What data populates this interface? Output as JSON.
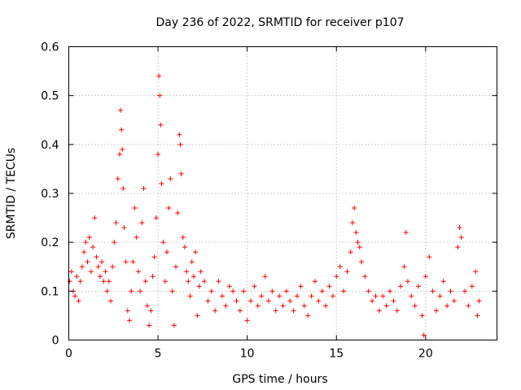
{
  "chart_data": {
    "type": "scatter",
    "title": "Day 236 of 2022, SRMTID for receiver p107",
    "xlabel": "GPS time / hours",
    "ylabel": "SRMTID / TECUs",
    "xlim": [
      0,
      24
    ],
    "ylim": [
      0,
      0.6
    ],
    "x_ticks": [
      0,
      5,
      10,
      15,
      20
    ],
    "x_tick_labels": [
      "0",
      "5",
      "10",
      "15",
      "20"
    ],
    "y_ticks": [
      0,
      0.1,
      0.2,
      0.3,
      0.4,
      0.5,
      0.6
    ],
    "y_tick_labels": [
      "0",
      "0.1",
      "0.2",
      "0.3",
      "0.4",
      "0.5",
      "0.6"
    ],
    "grid": true,
    "marker": "+",
    "marker_color": "#ff0000",
    "series": [
      {
        "name": "p107",
        "points": [
          [
            0.05,
            0.12
          ],
          [
            0.15,
            0.14
          ],
          [
            0.25,
            0.1
          ],
          [
            0.35,
            0.09
          ],
          [
            0.45,
            0.13
          ],
          [
            0.55,
            0.08
          ],
          [
            0.65,
            0.12
          ],
          [
            0.75,
            0.15
          ],
          [
            0.85,
            0.18
          ],
          [
            0.95,
            0.2
          ],
          [
            1.05,
            0.16
          ],
          [
            1.15,
            0.21
          ],
          [
            1.25,
            0.14
          ],
          [
            1.35,
            0.19
          ],
          [
            1.45,
            0.25
          ],
          [
            1.55,
            0.17
          ],
          [
            1.65,
            0.15
          ],
          [
            1.75,
            0.13
          ],
          [
            1.85,
            0.16
          ],
          [
            1.95,
            0.12
          ],
          [
            2.05,
            0.14
          ],
          [
            2.15,
            0.1
          ],
          [
            2.25,
            0.12
          ],
          [
            2.35,
            0.08
          ],
          [
            2.45,
            0.15
          ],
          [
            2.55,
            0.2
          ],
          [
            2.65,
            0.24
          ],
          [
            2.75,
            0.33
          ],
          [
            2.85,
            0.38
          ],
          [
            2.9,
            0.47
          ],
          [
            2.95,
            0.43
          ],
          [
            3.0,
            0.39
          ],
          [
            3.05,
            0.31
          ],
          [
            3.1,
            0.23
          ],
          [
            3.2,
            0.16
          ],
          [
            3.3,
            0.06
          ],
          [
            3.4,
            0.04
          ],
          [
            3.5,
            0.1
          ],
          [
            3.6,
            0.16
          ],
          [
            3.7,
            0.27
          ],
          [
            3.8,
            0.21
          ],
          [
            3.9,
            0.14
          ],
          [
            4.0,
            0.1
          ],
          [
            4.1,
            0.24
          ],
          [
            4.2,
            0.31
          ],
          [
            4.3,
            0.12
          ],
          [
            4.4,
            0.07
          ],
          [
            4.5,
            0.03
          ],
          [
            4.6,
            0.06
          ],
          [
            4.7,
            0.13
          ],
          [
            4.8,
            0.17
          ],
          [
            4.9,
            0.25
          ],
          [
            5.0,
            0.38
          ],
          [
            5.05,
            0.54
          ],
          [
            5.1,
            0.5
          ],
          [
            5.15,
            0.44
          ],
          [
            5.2,
            0.32
          ],
          [
            5.3,
            0.2
          ],
          [
            5.4,
            0.12
          ],
          [
            5.5,
            0.18
          ],
          [
            5.6,
            0.27
          ],
          [
            5.7,
            0.33
          ],
          [
            5.8,
            0.1
          ],
          [
            5.9,
            0.03
          ],
          [
            6.0,
            0.15
          ],
          [
            6.1,
            0.26
          ],
          [
            6.2,
            0.42
          ],
          [
            6.25,
            0.4
          ],
          [
            6.3,
            0.34
          ],
          [
            6.4,
            0.21
          ],
          [
            6.5,
            0.19
          ],
          [
            6.6,
            0.14
          ],
          [
            6.7,
            0.12
          ],
          [
            6.8,
            0.09
          ],
          [
            6.9,
            0.16
          ],
          [
            7.0,
            0.13
          ],
          [
            7.1,
            0.18
          ],
          [
            7.2,
            0.05
          ],
          [
            7.3,
            0.11
          ],
          [
            7.4,
            0.14
          ],
          [
            7.6,
            0.12
          ],
          [
            7.8,
            0.08
          ],
          [
            8.0,
            0.1
          ],
          [
            8.2,
            0.06
          ],
          [
            8.4,
            0.12
          ],
          [
            8.6,
            0.09
          ],
          [
            8.8,
            0.07
          ],
          [
            9.0,
            0.11
          ],
          [
            9.2,
            0.1
          ],
          [
            9.4,
            0.08
          ],
          [
            9.6,
            0.06
          ],
          [
            9.8,
            0.1
          ],
          [
            10.0,
            0.04
          ],
          [
            10.2,
            0.08
          ],
          [
            10.4,
            0.11
          ],
          [
            10.6,
            0.07
          ],
          [
            10.8,
            0.09
          ],
          [
            11.0,
            0.13
          ],
          [
            11.2,
            0.08
          ],
          [
            11.4,
            0.1
          ],
          [
            11.6,
            0.06
          ],
          [
            11.8,
            0.09
          ],
          [
            12.0,
            0.07
          ],
          [
            12.2,
            0.1
          ],
          [
            12.4,
            0.08
          ],
          [
            12.6,
            0.06
          ],
          [
            12.8,
            0.09
          ],
          [
            13.0,
            0.11
          ],
          [
            13.2,
            0.07
          ],
          [
            13.4,
            0.05
          ],
          [
            13.6,
            0.09
          ],
          [
            13.8,
            0.12
          ],
          [
            14.0,
            0.08
          ],
          [
            14.2,
            0.1
          ],
          [
            14.4,
            0.07
          ],
          [
            14.6,
            0.11
          ],
          [
            14.8,
            0.09
          ],
          [
            15.0,
            0.13
          ],
          [
            15.2,
            0.15
          ],
          [
            15.4,
            0.1
          ],
          [
            15.6,
            0.14
          ],
          [
            15.8,
            0.18
          ],
          [
            15.9,
            0.24
          ],
          [
            16.0,
            0.27
          ],
          [
            16.1,
            0.22
          ],
          [
            16.2,
            0.2
          ],
          [
            16.3,
            0.19
          ],
          [
            16.4,
            0.16
          ],
          [
            16.6,
            0.13
          ],
          [
            16.8,
            0.1
          ],
          [
            17.0,
            0.08
          ],
          [
            17.2,
            0.09
          ],
          [
            17.4,
            0.06
          ],
          [
            17.6,
            0.09
          ],
          [
            17.8,
            0.07
          ],
          [
            18.0,
            0.1
          ],
          [
            18.2,
            0.08
          ],
          [
            18.4,
            0.06
          ],
          [
            18.6,
            0.11
          ],
          [
            18.8,
            0.15
          ],
          [
            18.9,
            0.22
          ],
          [
            19.0,
            0.12
          ],
          [
            19.2,
            0.09
          ],
          [
            19.4,
            0.07
          ],
          [
            19.6,
            0.11
          ],
          [
            19.8,
            0.05
          ],
          [
            19.9,
            0.01
          ],
          [
            20.0,
            0.13
          ],
          [
            20.2,
            0.17
          ],
          [
            20.4,
            0.1
          ],
          [
            20.6,
            0.06
          ],
          [
            20.8,
            0.09
          ],
          [
            21.0,
            0.12
          ],
          [
            21.2,
            0.07
          ],
          [
            21.4,
            0.1
          ],
          [
            21.6,
            0.08
          ],
          [
            21.8,
            0.19
          ],
          [
            21.9,
            0.23
          ],
          [
            22.0,
            0.21
          ],
          [
            22.2,
            0.1
          ],
          [
            22.4,
            0.07
          ],
          [
            22.6,
            0.11
          ],
          [
            22.8,
            0.14
          ],
          [
            22.9,
            0.05
          ],
          [
            23.0,
            0.08
          ]
        ]
      }
    ]
  }
}
